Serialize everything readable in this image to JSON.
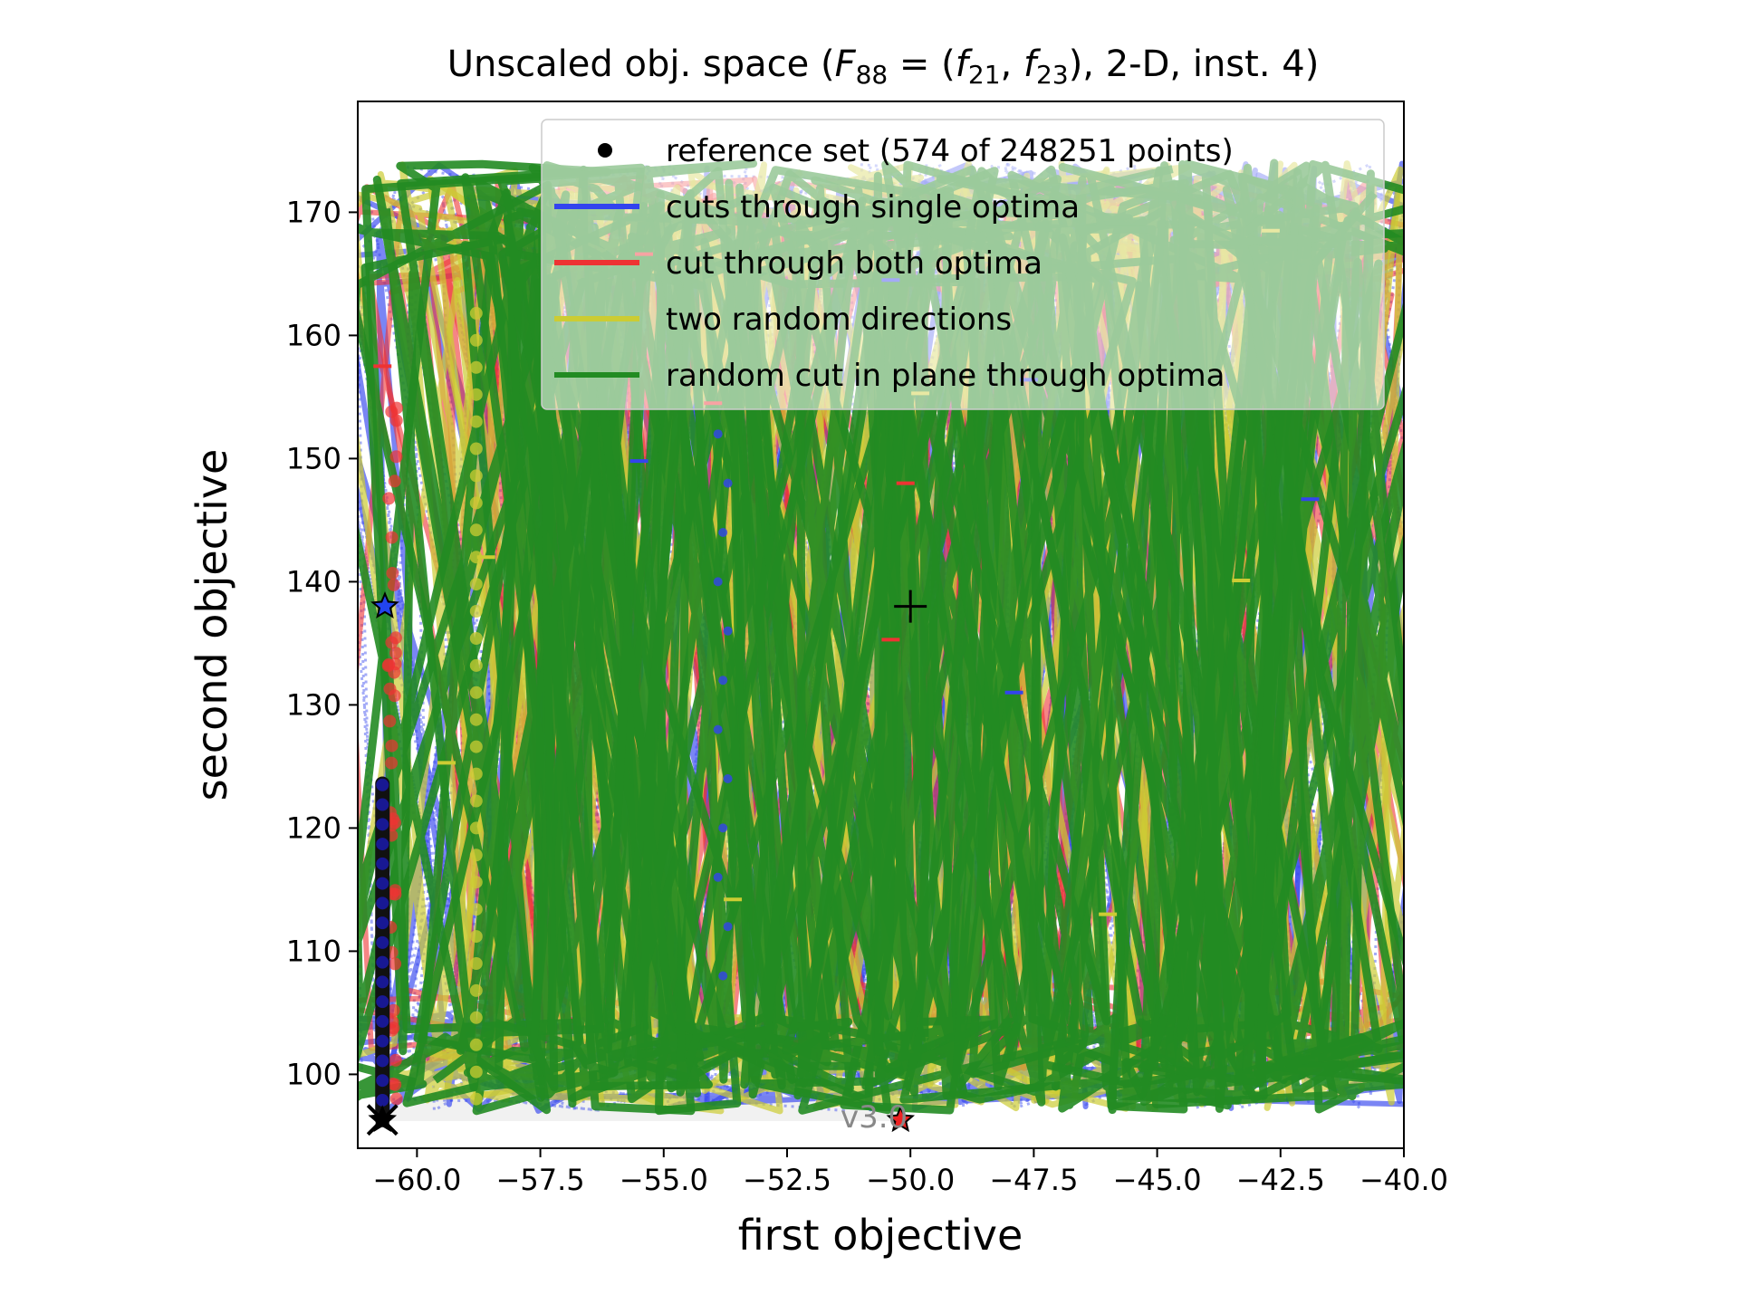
{
  "chart_data": {
    "type": "line",
    "title_prefix": "Unscaled obj. space (",
    "title_math_F": "F",
    "title_math_F_sub": "88",
    "title_math_eq": " = (",
    "title_math_f1": "f",
    "title_math_f1_sub": "21",
    "title_math_comma": ", ",
    "title_math_f2": "f",
    "title_math_f2_sub": "23",
    "title_suffix": "), 2-D, inst. 4)",
    "xlabel": "first objective",
    "ylabel": "second objective",
    "xlim": [
      -61.2,
      -40.0
    ],
    "ylim": [
      94.0,
      179.0
    ],
    "xticks": [
      -60.0,
      -57.5,
      -55.0,
      -52.5,
      -50.0,
      -47.5,
      -45.0,
      -42.5,
      -40.0
    ],
    "xtick_labels": [
      "−60.0",
      "−57.5",
      "−55.0",
      "−52.5",
      "−50.0",
      "−47.5",
      "−45.0",
      "−42.5",
      "−40.0"
    ],
    "yticks": [
      100,
      110,
      120,
      130,
      140,
      150,
      160,
      170
    ],
    "ytick_labels": [
      "100",
      "110",
      "120",
      "130",
      "140",
      "150",
      "160",
      "170"
    ],
    "grid": false,
    "legend_placement": "top-right",
    "legend": [
      {
        "label": "reference set (574 of 248251 points)",
        "marker": "dot",
        "color": "#000000"
      },
      {
        "label": "cuts through single optima",
        "marker": "line",
        "color": "#3344ee"
      },
      {
        "label": "cut through both optima",
        "marker": "line",
        "color": "#ee3333"
      },
      {
        "label": "two random directions",
        "marker": "line",
        "color": "#cccc33"
      },
      {
        "label": "random cut in plane through optima",
        "marker": "line",
        "color": "#228B22"
      }
    ],
    "series_colors": {
      "single": "#3344ee",
      "both": "#ee3333",
      "random": "#cccc33",
      "plane": "#228B22"
    },
    "reference_set": {
      "x": -60.7,
      "y_min": 96.3,
      "y_max": 123.6
    },
    "optimum_1": {
      "x": -60.7,
      "y": 96.3
    },
    "optimum_2": {
      "x": -50.2,
      "y": 96.3
    },
    "blue_star": {
      "x": -60.65,
      "y": 138.0
    },
    "center_plus": {
      "x": -50.0,
      "y": 138.0
    },
    "version": "v3.0"
  }
}
